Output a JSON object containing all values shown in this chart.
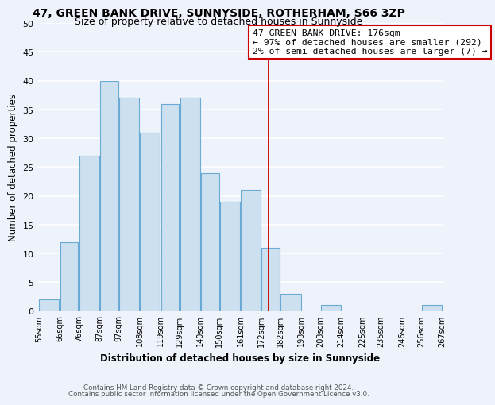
{
  "title": "47, GREEN BANK DRIVE, SUNNYSIDE, ROTHERHAM, S66 3ZP",
  "subtitle": "Size of property relative to detached houses in Sunnyside",
  "xlabel": "Distribution of detached houses by size in Sunnyside",
  "ylabel": "Number of detached properties",
  "bar_left_edges": [
    55,
    66,
    76,
    87,
    97,
    108,
    119,
    129,
    140,
    150,
    161,
    172,
    182,
    193,
    203,
    214,
    225,
    235,
    246,
    256
  ],
  "bar_widths": [
    11,
    10,
    11,
    10,
    11,
    11,
    10,
    11,
    10,
    11,
    11,
    10,
    11,
    10,
    11,
    11,
    10,
    11,
    10,
    11
  ],
  "bar_heights": [
    2,
    12,
    27,
    40,
    37,
    31,
    36,
    37,
    24,
    19,
    21,
    11,
    3,
    0,
    1,
    0,
    0,
    0,
    0,
    1
  ],
  "bar_color": "#cce0f0",
  "bar_edgecolor": "#6aaad4",
  "x_tick_labels": [
    "55sqm",
    "66sqm",
    "76sqm",
    "87sqm",
    "97sqm",
    "108sqm",
    "119sqm",
    "129sqm",
    "140sqm",
    "150sqm",
    "161sqm",
    "172sqm",
    "182sqm",
    "193sqm",
    "203sqm",
    "214sqm",
    "225sqm",
    "235sqm",
    "246sqm",
    "256sqm",
    "267sqm"
  ],
  "ylim": [
    0,
    50
  ],
  "yticks": [
    0,
    5,
    10,
    15,
    20,
    25,
    30,
    35,
    40,
    45,
    50
  ],
  "property_line_x": 176,
  "property_line_color": "#cc0000",
  "annotation_title": "47 GREEN BANK DRIVE: 176sqm",
  "annotation_line1": "← 97% of detached houses are smaller (292)",
  "annotation_line2": "2% of semi-detached houses are larger (7) →",
  "footer_line1": "Contains HM Land Registry data © Crown copyright and database right 2024.",
  "footer_line2": "Contains public sector information licensed under the Open Government Licence v3.0.",
  "background_color": "#eef2fb",
  "grid_color": "#ffffff",
  "title_fontsize": 10,
  "subtitle_fontsize": 9
}
